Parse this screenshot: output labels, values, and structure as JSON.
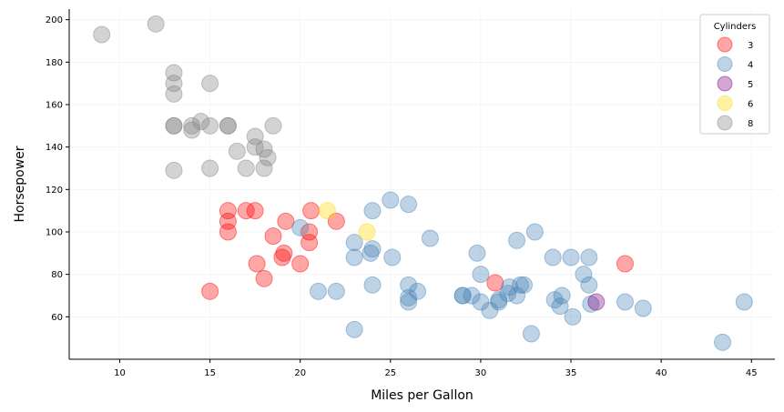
{
  "chart_data": {
    "type": "scatter",
    "xlabel": "Miles per Gallon",
    "ylabel": "Horsepower",
    "xlim": [
      7.2,
      46.3
    ],
    "ylim": [
      40,
      205
    ],
    "xticks": [
      10,
      15,
      20,
      25,
      30,
      35,
      40,
      45
    ],
    "yticks": [
      60,
      80,
      100,
      120,
      140,
      160,
      180,
      200
    ],
    "grid": true,
    "legend": {
      "title": "Cylinders",
      "placement": "top-right",
      "entries": [
        "3",
        "4",
        "5",
        "6",
        "8"
      ]
    },
    "colors": {
      "3": "#ff0000",
      "4": "#4682b4",
      "5": "#800080",
      "6": "#ffd700",
      "8": "#808080"
    },
    "series": [
      {
        "name": "3",
        "points": [
          [
            15,
            72
          ],
          [
            16,
            110
          ],
          [
            16,
            105
          ],
          [
            16,
            100
          ],
          [
            17,
            110
          ],
          [
            17.5,
            110
          ],
          [
            17.6,
            85
          ],
          [
            18,
            78
          ],
          [
            18.5,
            98
          ],
          [
            19,
            88
          ],
          [
            19.1,
            90
          ],
          [
            19.2,
            105
          ],
          [
            20,
            85
          ],
          [
            20.5,
            95
          ],
          [
            20.5,
            100
          ],
          [
            20.6,
            110
          ],
          [
            22,
            105
          ],
          [
            30.8,
            76
          ],
          [
            38,
            85
          ]
        ]
      },
      {
        "name": "4",
        "points": [
          [
            20,
            102
          ],
          [
            21,
            72
          ],
          [
            22,
            72
          ],
          [
            23,
            95
          ],
          [
            23,
            88
          ],
          [
            23,
            54
          ],
          [
            23.9,
            90
          ],
          [
            24,
            110
          ],
          [
            24,
            92
          ],
          [
            24,
            75
          ],
          [
            25,
            115
          ],
          [
            25.1,
            88
          ],
          [
            26,
            113
          ],
          [
            26,
            75
          ],
          [
            26,
            69
          ],
          [
            26,
            67
          ],
          [
            26.5,
            72
          ],
          [
            27.2,
            97
          ],
          [
            29,
            70
          ],
          [
            29,
            70
          ],
          [
            29.5,
            70
          ],
          [
            29.8,
            90
          ],
          [
            30,
            80
          ],
          [
            30,
            67
          ],
          [
            30.5,
            63
          ],
          [
            31,
            67
          ],
          [
            31,
            68
          ],
          [
            31.5,
            71
          ],
          [
            31.6,
            74
          ],
          [
            32,
            96
          ],
          [
            32,
            70
          ],
          [
            32.2,
            75
          ],
          [
            32.4,
            75
          ],
          [
            32.8,
            52
          ],
          [
            33,
            100
          ],
          [
            34,
            88
          ],
          [
            34.1,
            68
          ],
          [
            34.4,
            65
          ],
          [
            34.5,
            70
          ],
          [
            35,
            88
          ],
          [
            35.1,
            60
          ],
          [
            35.7,
            80
          ],
          [
            36,
            88
          ],
          [
            36,
            75
          ],
          [
            36.1,
            66
          ],
          [
            38,
            67
          ],
          [
            39,
            64
          ],
          [
            43.4,
            48
          ],
          [
            44.6,
            67
          ]
        ]
      },
      {
        "name": "5",
        "points": [
          [
            36.4,
            67
          ]
        ]
      },
      {
        "name": "6",
        "points": [
          [
            21.5,
            110
          ],
          [
            23.7,
            100
          ]
        ]
      },
      {
        "name": "8",
        "points": [
          [
            9,
            193
          ],
          [
            12,
            198
          ],
          [
            13,
            175
          ],
          [
            13,
            170
          ],
          [
            13,
            165
          ],
          [
            13,
            150
          ],
          [
            13,
            150
          ],
          [
            13,
            129
          ],
          [
            14,
            150
          ],
          [
            14,
            148
          ],
          [
            14.5,
            152
          ],
          [
            15,
            170
          ],
          [
            15,
            150
          ],
          [
            15,
            130
          ],
          [
            16,
            150
          ],
          [
            16,
            150
          ],
          [
            16.5,
            138
          ],
          [
            17,
            130
          ],
          [
            17.5,
            145
          ],
          [
            17.5,
            140
          ],
          [
            18,
            139
          ],
          [
            18,
            130
          ],
          [
            18.2,
            135
          ],
          [
            18.5,
            150
          ]
        ]
      }
    ]
  }
}
